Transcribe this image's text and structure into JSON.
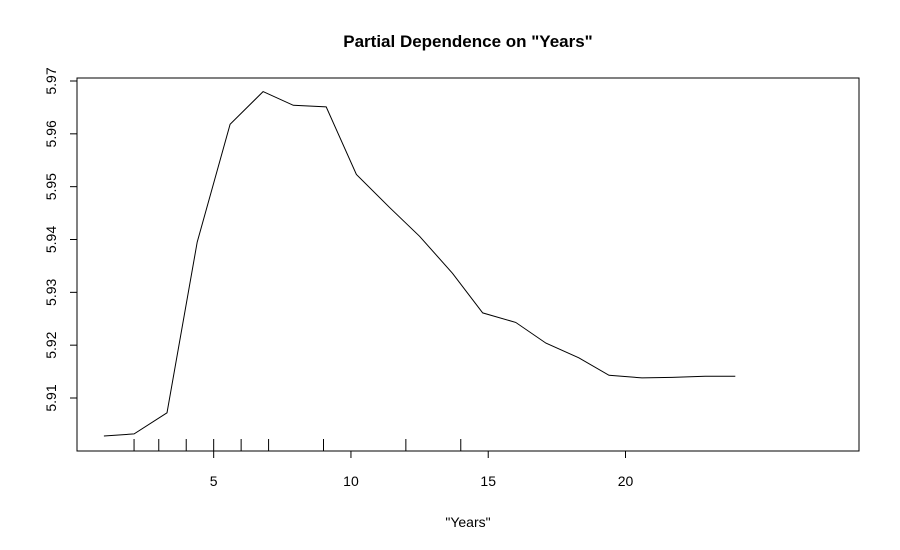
{
  "chart_data": {
    "type": "line",
    "title": "Partial Dependence on \"Years\"",
    "xlabel": "\"Years\"",
    "ylabel": "",
    "xlim": [
      0.0,
      25.0
    ],
    "ylim": [
      5.9,
      5.971
    ],
    "xticks": [
      5,
      10,
      15,
      20
    ],
    "yticks": [
      5.91,
      5.92,
      5.93,
      5.94,
      5.95,
      5.96,
      5.97
    ],
    "grid": false,
    "series": [
      {
        "x": [
          1,
          2.1,
          3.3,
          4.4,
          5.6,
          6.8,
          7.9,
          9.1,
          10.2,
          11.4,
          12.5,
          13.7,
          14.8,
          16.0,
          17.1,
          18.3,
          19.4,
          20.6,
          21.7,
          22.9,
          24.0
        ],
        "y": [
          5.9028,
          5.9032,
          5.9072,
          5.9395,
          5.9618,
          5.968,
          5.9654,
          5.9651,
          5.9523,
          5.9461,
          5.9406,
          5.9336,
          5.9261,
          5.9243,
          5.9204,
          5.9176,
          5.9143,
          5.9138,
          5.9139,
          5.9141,
          5.9141
        ]
      }
    ],
    "rug": [
      2.1,
      3.0,
      4.0,
      5.0,
      6.0,
      7.0,
      9.0,
      12.0,
      14.0
    ]
  }
}
